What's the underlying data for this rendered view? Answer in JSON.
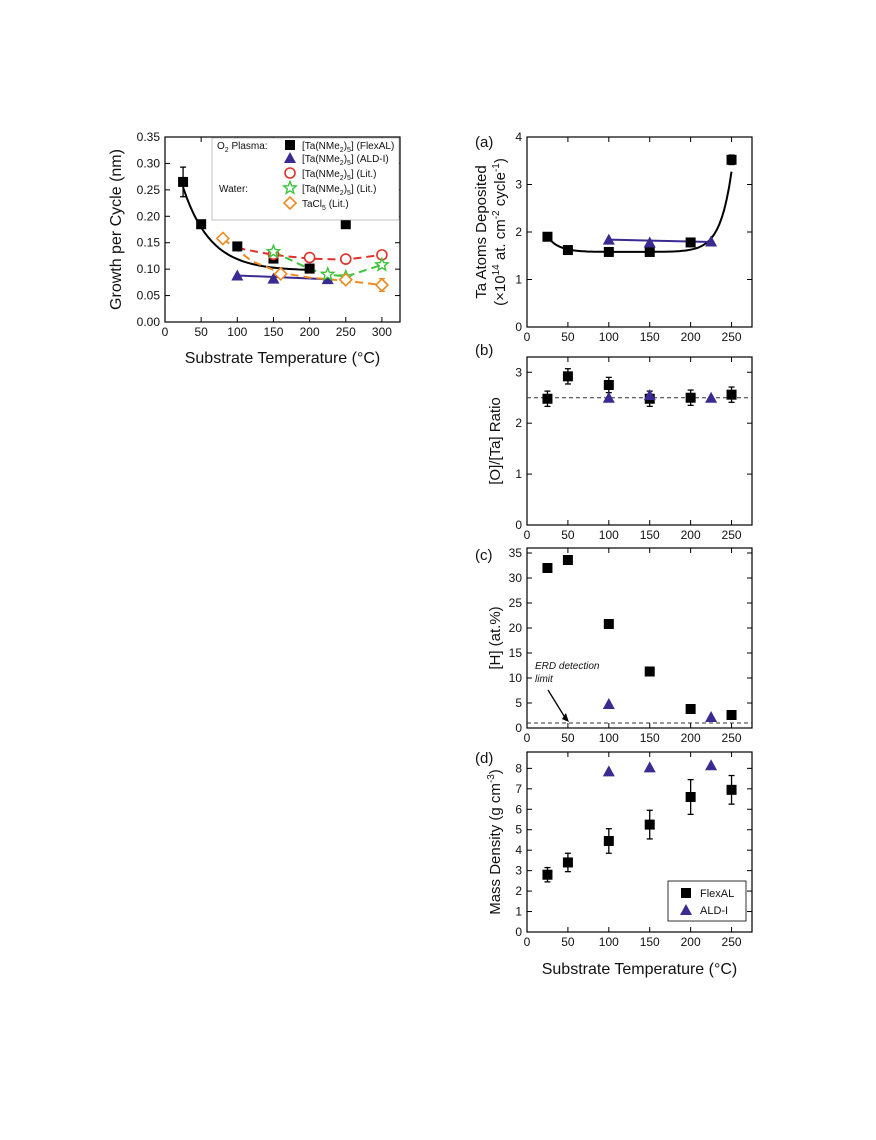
{
  "figure": {
    "panel_labels": [
      "(a)",
      "(b)",
      "(c)",
      "(d)"
    ]
  },
  "colors": {
    "flexal": "#000000",
    "aldi": "#3b2a8f",
    "lit_plasma": "#e0302a",
    "lit_water": "#3cc43a",
    "tacl5": "#ee8a22",
    "frame": "#000000"
  },
  "chart_data": [
    {
      "id": "gpc",
      "type": "scatter",
      "xlabel": "Substrate Temperature (°C)",
      "ylabel": "Growth per Cycle (nm)",
      "xlim": [
        0,
        325
      ],
      "ylim": [
        0.0,
        0.35
      ],
      "xticks": [
        0,
        50,
        100,
        150,
        200,
        250,
        300
      ],
      "yticks": [
        0.0,
        0.05,
        0.1,
        0.15,
        0.2,
        0.25,
        0.3,
        0.35
      ],
      "ytick_labels": [
        "0.00",
        "0.05",
        "0.10",
        "0.15",
        "0.20",
        "0.25",
        "0.30",
        "0.35"
      ],
      "legend": {
        "placement": "top-right",
        "group_labels": [
          "O2 Plasma:",
          "Water:"
        ],
        "entries": [
          "[Ta(NMe2)5] (FlexAL)",
          "[Ta(NMe2)5] (ALD-I)",
          "[Ta(NMe2)5] (Lit.)",
          "[Ta(NMe2)5] (Lit.)",
          "TaCl5 (Lit.)"
        ]
      },
      "series": [
        {
          "name": "[Ta(NMe2)5] (FlexAL)",
          "marker": "square",
          "color": "#000000",
          "x": [
            25,
            50,
            100,
            150,
            200,
            250
          ],
          "y": [
            0.265,
            0.185,
            0.143,
            0.12,
            0.101,
            0.185
          ],
          "err": [
            0.028,
            0.006,
            0.006,
            0.008,
            0.008,
            0.0
          ]
        },
        {
          "name": "[Ta(NMe2)5] (ALD-I)",
          "marker": "triangle",
          "color": "#3b2a8f",
          "x": [
            100,
            150,
            225
          ],
          "y": [
            0.088,
            0.082,
            0.081
          ]
        },
        {
          "name": "[Ta(NMe2)5] (Lit.)",
          "marker": "circle-open",
          "color": "#e0302a",
          "x": [
            150,
            200,
            250,
            300
          ],
          "y": [
            0.128,
            0.122,
            0.119,
            0.127
          ]
        },
        {
          "name": "[Ta(NMe2)5] (Lit.)",
          "marker": "star-open",
          "color": "#3cc43a",
          "x": [
            150,
            225,
            250,
            300
          ],
          "y": [
            0.133,
            0.09,
            0.085,
            0.108
          ]
        },
        {
          "name": "TaCl5 (Lit.)",
          "marker": "diamond-open",
          "color": "#ee8a22",
          "x": [
            80,
            160,
            250,
            300
          ],
          "y": [
            0.158,
            0.091,
            0.08,
            0.07
          ],
          "err": [
            0,
            0,
            0,
            0.012
          ]
        }
      ]
    },
    {
      "id": "a",
      "type": "scatter",
      "xlabel": "",
      "ylabel": "Ta Atoms Deposited (×10^14 at. cm^-2 cycle^-1)",
      "xlim": [
        0,
        275
      ],
      "ylim": [
        0,
        4
      ],
      "xticks": [
        0,
        50,
        100,
        150,
        200,
        250
      ],
      "yticks": [
        0,
        1,
        2,
        3,
        4
      ],
      "series": [
        {
          "name": "FlexAL",
          "marker": "square",
          "color": "#000000",
          "x": [
            25,
            50,
            100,
            150,
            200,
            250
          ],
          "y": [
            1.9,
            1.62,
            1.58,
            1.58,
            1.78,
            3.52
          ],
          "err": [
            0.06,
            0.06,
            0.06,
            0.06,
            0.05,
            0.1
          ]
        },
        {
          "name": "ALD-I",
          "marker": "triangle",
          "color": "#3b2a8f",
          "x": [
            100,
            150,
            225
          ],
          "y": [
            1.84,
            1.78,
            1.8
          ]
        }
      ]
    },
    {
      "id": "b",
      "type": "scatter",
      "xlabel": "",
      "ylabel": "[O]/[Ta] Ratio",
      "xlim": [
        0,
        275
      ],
      "ylim": [
        0,
        3.3
      ],
      "xticks": [
        0,
        50,
        100,
        150,
        200,
        250
      ],
      "yticks": [
        0,
        1,
        2,
        3
      ],
      "reference_line": 2.5,
      "series": [
        {
          "name": "FlexAL",
          "marker": "square",
          "color": "#000000",
          "x": [
            25,
            50,
            100,
            150,
            200,
            250
          ],
          "y": [
            2.48,
            2.92,
            2.75,
            2.48,
            2.5,
            2.56
          ],
          "err": [
            0.15,
            0.15,
            0.15,
            0.15,
            0.15,
            0.15
          ]
        },
        {
          "name": "ALD-I",
          "marker": "triangle",
          "color": "#3b2a8f",
          "x": [
            100,
            150,
            225
          ],
          "y": [
            2.5,
            2.55,
            2.5
          ]
        }
      ]
    },
    {
      "id": "c",
      "type": "scatter",
      "xlabel": "",
      "ylabel": "[H] (at.%)",
      "xlim": [
        0,
        275
      ],
      "ylim": [
        0,
        36
      ],
      "xticks": [
        0,
        50,
        100,
        150,
        200,
        250
      ],
      "yticks": [
        0,
        5,
        10,
        15,
        20,
        25,
        30,
        35
      ],
      "reference_line": 1,
      "annotation": "ERD detection limit",
      "series": [
        {
          "name": "FlexAL",
          "marker": "square",
          "color": "#000000",
          "x": [
            25,
            50,
            100,
            150,
            200,
            250
          ],
          "y": [
            32,
            33.6,
            20.8,
            11.3,
            3.8,
            2.6
          ]
        },
        {
          "name": "ALD-I",
          "marker": "triangle",
          "color": "#3b2a8f",
          "x": [
            100,
            225
          ],
          "y": [
            4.8,
            2.2
          ]
        }
      ]
    },
    {
      "id": "d",
      "type": "scatter",
      "xlabel": "Substrate Temperature (°C)",
      "ylabel": "Mass Density (g cm^-3)",
      "xlim": [
        0,
        275
      ],
      "ylim": [
        0,
        8.8
      ],
      "xticks": [
        0,
        50,
        100,
        150,
        200,
        250
      ],
      "yticks": [
        0,
        1,
        2,
        3,
        4,
        5,
        6,
        7,
        8
      ],
      "legend": {
        "placement": "bottom-right",
        "entries": [
          "FlexAL",
          "ALD-I"
        ]
      },
      "series": [
        {
          "name": "FlexAL",
          "marker": "square",
          "color": "#000000",
          "x": [
            25,
            50,
            100,
            150,
            200,
            250
          ],
          "y": [
            2.8,
            3.4,
            4.45,
            5.25,
            6.6,
            6.95
          ],
          "err": [
            0.35,
            0.45,
            0.6,
            0.7,
            0.85,
            0.7
          ]
        },
        {
          "name": "ALD-I",
          "marker": "triangle",
          "color": "#3b2a8f",
          "x": [
            100,
            150,
            225
          ],
          "y": [
            7.85,
            8.05,
            8.15
          ]
        }
      ]
    }
  ]
}
